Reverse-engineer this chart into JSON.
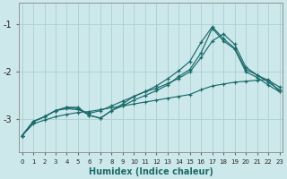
{
  "xlabel": "Humidex (Indice chaleur)",
  "background_color": "#cde8ea",
  "grid_color": "#a8d0d4",
  "line_color": "#1a6b6b",
  "xticks": [
    0,
    1,
    2,
    3,
    4,
    5,
    6,
    7,
    8,
    9,
    10,
    11,
    12,
    13,
    14,
    15,
    16,
    17,
    18,
    19,
    20,
    21,
    22,
    23
  ],
  "yticks": [
    -1,
    -2,
    -3
  ],
  "ylim": [
    -3.7,
    -0.55
  ],
  "xlim": [
    -0.3,
    23.3
  ],
  "line1_y": [
    -3.35,
    -3.05,
    -2.95,
    -2.82,
    -2.75,
    -2.75,
    -2.92,
    -2.98,
    -2.82,
    -2.72,
    -2.6,
    -2.5,
    -2.4,
    -2.28,
    -2.1,
    -1.95,
    -1.6,
    -1.08,
    -1.35,
    -1.52,
    -2.0,
    -2.12,
    -2.28,
    -2.42
  ],
  "line2_y": [
    -3.35,
    -3.05,
    -2.95,
    -2.82,
    -2.75,
    -2.78,
    -2.92,
    -2.98,
    -2.82,
    -2.68,
    -2.52,
    -2.42,
    -2.3,
    -2.15,
    -1.98,
    -1.78,
    -1.38,
    -1.05,
    -1.3,
    -1.5,
    -1.95,
    -2.07,
    -2.22,
    -2.38
  ],
  "line3_y": [
    -3.35,
    -3.05,
    -2.95,
    -2.82,
    -2.78,
    -2.8,
    -2.88,
    -2.82,
    -2.72,
    -2.62,
    -2.52,
    -2.42,
    -2.35,
    -2.25,
    -2.14,
    -2.0,
    -1.7,
    -1.35,
    -1.2,
    -1.42,
    -1.9,
    -2.07,
    -2.18,
    -2.32
  ],
  "line4_y": [
    -3.35,
    -3.1,
    -3.02,
    -2.95,
    -2.9,
    -2.86,
    -2.84,
    -2.8,
    -2.76,
    -2.72,
    -2.68,
    -2.64,
    -2.6,
    -2.56,
    -2.52,
    -2.48,
    -2.38,
    -2.3,
    -2.26,
    -2.22,
    -2.2,
    -2.18,
    -2.16,
    -2.42
  ]
}
